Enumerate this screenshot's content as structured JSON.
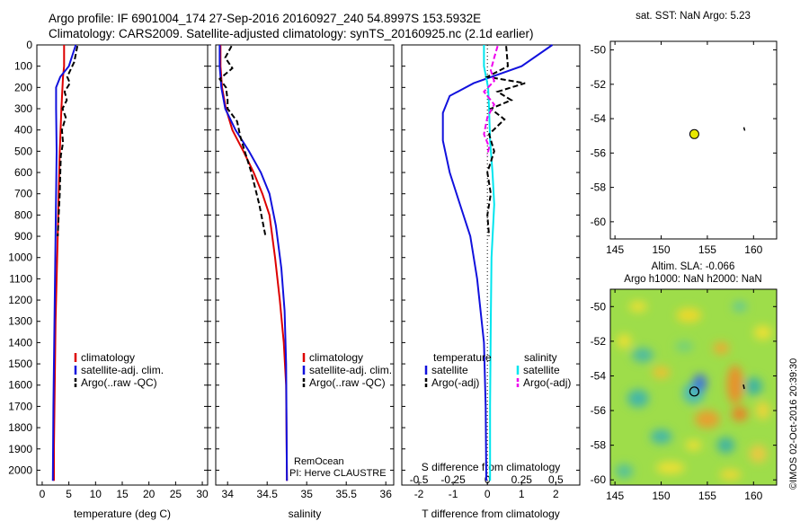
{
  "header": {
    "line1": "Argo profile: IF 6901004_174 27-Sep-2016 20160927_240 54.8997S 153.5932E",
    "line2": "Climatology: CARS2009. Satellite-adjusted climatology: synTS_20160925.nc (2.1d earlier)"
  },
  "colors": {
    "climatology": "#dd0000",
    "satellite": "#1111dd",
    "argo": "#000000",
    "satellite_salinity": "#00e5ee",
    "argo_salinity_diff": "#ee00ee",
    "sst_marker": "#e8e800"
  },
  "credits": {
    "line1": "RemOcean",
    "line2": "PI: Herve CLAUSTRE"
  },
  "stamp": "©IMOS 02-Oct-2016 20:39:30",
  "chart_data": [
    {
      "type": "line",
      "xlabel": "temperature (deg C)",
      "xlim": [
        -1,
        31
      ],
      "ylim": [
        2070,
        0
      ],
      "xticks": [
        "0",
        "5",
        "10",
        "15",
        "20",
        "25",
        "30"
      ],
      "yticks": [
        "0",
        "100",
        "200",
        "300",
        "400",
        "500",
        "600",
        "700",
        "800",
        "900",
        "1000",
        "1100",
        "1200",
        "1300",
        "1400",
        "1500",
        "1600",
        "1700",
        "1800",
        "1900",
        "2000"
      ],
      "legend": [
        "climatology",
        "satellite-adj. clim.",
        "Argo(..raw -QC)"
      ],
      "legend_position": "lower-center",
      "series": [
        {
          "name": "climatology",
          "color": "#dd0000",
          "dash": false,
          "x": [
            4.1,
            4.1,
            3.9,
            3.8,
            3.6,
            3.3,
            3.1,
            2.9,
            2.7,
            2.5,
            2.4,
            2.3,
            2.2,
            2.2
          ],
          "y": [
            0,
            100,
            150,
            200,
            300,
            500,
            700,
            900,
            1100,
            1300,
            1500,
            1700,
            1900,
            2050
          ]
        },
        {
          "name": "satellite-adj. clim.",
          "color": "#1111dd",
          "dash": false,
          "x": [
            6.3,
            5.0,
            3.4,
            2.6,
            2.6,
            2.7,
            2.6,
            2.5,
            2.4,
            2.3,
            2.2,
            2.1,
            2.0
          ],
          "y": [
            0,
            100,
            150,
            200,
            300,
            500,
            700,
            900,
            1100,
            1300,
            1500,
            1700,
            2050
          ]
        },
        {
          "name": "Argo(..raw -QC)",
          "color": "#000000",
          "dash": true,
          "x": [
            6.6,
            6.0,
            4.7,
            5.2,
            4.2,
            4.6,
            3.8,
            4.4,
            3.7,
            3.9,
            3.5,
            3.4,
            3.3,
            3.1,
            2.9
          ],
          "y": [
            5,
            80,
            150,
            180,
            220,
            260,
            300,
            340,
            400,
            460,
            520,
            600,
            700,
            800,
            900
          ]
        }
      ]
    },
    {
      "type": "line",
      "xlabel": "salinity",
      "xlim": [
        33.85,
        36.1
      ],
      "ylim": [
        2070,
        0
      ],
      "xticks": [
        "34",
        "34.5",
        "35",
        "35.5",
        "36"
      ],
      "legend": [
        "climatology",
        "satellite-adj. clim.",
        "Argo(..raw -QC)"
      ],
      "legend_position": "lower-right",
      "series": [
        {
          "name": "climatology",
          "color": "#dd0000",
          "dash": false,
          "x": [
            33.91,
            33.91,
            33.93,
            33.98,
            34.06,
            34.2,
            34.33,
            34.44,
            34.53,
            34.6,
            34.66,
            34.71,
            34.74,
            34.75
          ],
          "y": [
            0,
            100,
            200,
            300,
            400,
            500,
            600,
            700,
            800,
            1000,
            1200,
            1400,
            1600,
            2050
          ]
        },
        {
          "name": "satellite-adj. clim.",
          "color": "#1111dd",
          "dash": false,
          "x": [
            33.9,
            33.9,
            33.92,
            33.97,
            34.1,
            34.27,
            34.42,
            34.53,
            34.61,
            34.68,
            34.72,
            34.74,
            34.75
          ],
          "y": [
            0,
            100,
            200,
            300,
            400,
            500,
            600,
            700,
            850,
            1050,
            1250,
            1500,
            2050
          ]
        },
        {
          "name": "Argo(..raw -QC)",
          "color": "#000000",
          "dash": true,
          "x": [
            34.05,
            33.97,
            34.06,
            33.9,
            33.98,
            34.0,
            34.0,
            34.12,
            34.16,
            34.2,
            34.3,
            34.4,
            34.48
          ],
          "y": [
            5,
            60,
            110,
            160,
            200,
            260,
            300,
            360,
            430,
            480,
            600,
            750,
            900
          ]
        }
      ]
    },
    {
      "type": "line",
      "xlabel": "T difference from climatology",
      "xlabel_top": "S difference from climatology",
      "xlim": [
        -2.5,
        2.7
      ],
      "ylim": [
        2070,
        0
      ],
      "xticks_T": [
        "-2",
        "-1",
        "0",
        "1",
        "2"
      ],
      "xticks_S": [
        "-0.5",
        "-0.25",
        "0",
        "0.25",
        "0.5"
      ],
      "legend_headers": [
        "temperature",
        "salinity"
      ],
      "legend": [
        "satellite",
        "Argo(-adj)",
        "satellite",
        "Argo(-adj)"
      ],
      "legend_position": "lower-center",
      "series": [
        {
          "name": "temperature satellite",
          "color": "#1111dd",
          "dash": false,
          "x": [
            1.9,
            1.0,
            -0.4,
            -1.1,
            -1.3,
            -1.3,
            -1.1,
            -0.8,
            -0.5,
            -0.3,
            -0.1,
            -0.05,
            -0.03
          ],
          "y": [
            0,
            100,
            180,
            240,
            320,
            450,
            600,
            750,
            900,
            1100,
            1400,
            1700,
            2050
          ]
        },
        {
          "name": "salinity satellite",
          "color": "#00e5ee",
          "dash": false,
          "x": [
            -0.1,
            -0.1,
            0.02,
            0.05,
            0.08,
            0.15,
            0.2,
            0.12,
            0.1,
            0.08,
            0.08
          ],
          "y": [
            0,
            100,
            200,
            300,
            450,
            600,
            750,
            1000,
            1300,
            1700,
            2050
          ]
        },
        {
          "name": "temperature Argo(-adj)",
          "color": "#000000",
          "dash": true,
          "x": [
            0.55,
            0.6,
            0.0,
            1.1,
            0.3,
            0.7,
            0.1,
            0.5,
            0.05,
            0.2,
            0.0,
            0.1,
            0.0,
            0.05
          ],
          "y": [
            5,
            100,
            150,
            180,
            220,
            260,
            300,
            350,
            420,
            500,
            600,
            700,
            800,
            900
          ]
        },
        {
          "name": "salinity Argo(-adj)",
          "color": "#ee00ee",
          "dash": true,
          "x": [
            0.3,
            0.2,
            0.1,
            0.2,
            -0.1,
            0.2,
            0.0,
            -0.1,
            0.05,
            0.0
          ],
          "y": [
            5,
            60,
            120,
            170,
            220,
            280,
            340,
            420,
            480,
            520
          ]
        }
      ]
    },
    {
      "type": "scatter",
      "title": "sat. SST: NaN Argo: 5.23",
      "xlim": [
        144.5,
        162.5
      ],
      "ylim": [
        -61,
        -49.5
      ],
      "xticks": [
        "145",
        "150",
        "155",
        "160"
      ],
      "yticks": [
        "-50",
        "-52",
        "-54",
        "-56",
        "-58",
        "-60"
      ],
      "points": [
        {
          "x": 153.59,
          "y": -54.9,
          "color": "#e8e800"
        }
      ],
      "track": {
        "x": [
          158.95,
          159.05
        ],
        "y": [
          -54.5,
          -54.7
        ]
      }
    },
    {
      "type": "heatmap",
      "title_line1": "Altim. SLA: -0.066",
      "title_line2": "Argo h1000: NaN h2000: NaN",
      "xlim": [
        144.5,
        162.5
      ],
      "ylim": [
        -60.3,
        -49
      ],
      "xticks": [
        "145",
        "150",
        "155",
        "160"
      ],
      "yticks": [
        "-50",
        "-52",
        "-54",
        "-56",
        "-58",
        "-60"
      ],
      "points": [
        {
          "x": 153.59,
          "y": -54.9
        }
      ],
      "track": {
        "x": [
          158.9,
          159.0
        ],
        "y": [
          -54.5,
          -54.75
        ]
      }
    }
  ]
}
